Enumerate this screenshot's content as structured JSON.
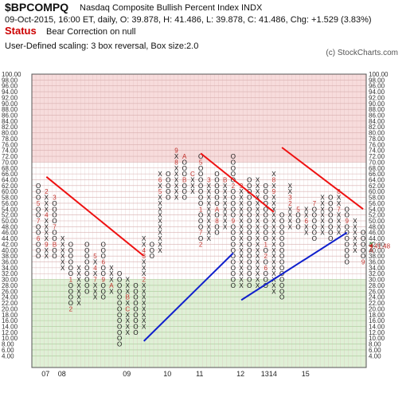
{
  "header": {
    "symbol": "$BPCOMPQ",
    "name": "Nasdaq Composite Bullish Percent Index  INDX",
    "ohlc": "09-Oct-2015, 16:00 ET, daily, O: 39.878, H: 41.486, L: 39.878, C: 41.486, Chg: +1.529 (3.83%)",
    "status_label": "Status",
    "status_text": "Bear Correction on null",
    "scaling": "User-Defined scaling: 3 box reversal, Box size:2.0",
    "copyright": "(c) StockCharts.com"
  },
  "colors": {
    "upper_zone": "#f7dcdc",
    "lower_zone": "#dff0d6",
    "grid": "#d8b0b0",
    "grid_green": "#a8cc98",
    "x_mark": "#111111",
    "o_mark": "#111111",
    "month_mark": "#c0302a",
    "last_x": "#2a9a2a",
    "resistance": "#ee1111",
    "support": "#1020cc"
  },
  "chart_data": {
    "type": "point-and-figure",
    "box_size": 2.0,
    "reversal": 3,
    "ylim": [
      0,
      100
    ],
    "y_ticks": [
      "100.00",
      "98.00",
      "96.00",
      "94.00",
      "92.00",
      "90.00",
      "88.00",
      "86.00",
      "84.00",
      "82.00",
      "80.00",
      "78.00",
      "76.00",
      "74.00",
      "72.00",
      "70.00",
      "68.00",
      "66.00",
      "64.00",
      "62.00",
      "60.00",
      "58.00",
      "56.00",
      "54.00",
      "52.00",
      "50.00",
      "48.00",
      "46.00",
      "44.00",
      "42.00",
      "40.00",
      "38.00",
      "36.00",
      "34.00",
      "32.00",
      "30.00",
      "28.00",
      "26.00",
      "24.00",
      "22.00",
      "20.00",
      "18.00",
      "16.00",
      "14.00",
      "12.00",
      "10.00",
      "8.00",
      "6.00",
      "4.00"
    ],
    "zones": {
      "overbought_from": 70,
      "oversold_to": 30
    },
    "x_labels": [
      {
        "label": "07",
        "col": 1
      },
      {
        "label": "08",
        "col": 3
      },
      {
        "label": "09",
        "col": 11
      },
      {
        "label": "10",
        "col": 16
      },
      {
        "label": "11",
        "col": 20
      },
      {
        "label": "12",
        "col": 25
      },
      {
        "label": "13",
        "col": 28
      },
      {
        "label": "14",
        "col": 29
      },
      {
        "label": "15",
        "col": 33
      }
    ],
    "columns": [
      {
        "type": "O",
        "low": 38,
        "high": 62,
        "months": [
          [
            56,
            "5"
          ],
          [
            50,
            "7"
          ],
          [
            44,
            "6"
          ]
        ]
      },
      {
        "type": "X",
        "low": 38,
        "high": 60,
        "months": [
          [
            60,
            "2"
          ],
          [
            52,
            "4"
          ],
          [
            42,
            "9"
          ]
        ]
      },
      {
        "type": "O",
        "low": 38,
        "high": 58,
        "months": [
          [
            58,
            "3"
          ],
          [
            48,
            "7"
          ],
          [
            42,
            "B"
          ]
        ]
      },
      {
        "type": "X",
        "low": 34,
        "high": 44,
        "months": []
      },
      {
        "type": "O",
        "low": 20,
        "high": 42,
        "months": [
          [
            30,
            "1"
          ],
          [
            20,
            "2"
          ]
        ]
      },
      {
        "type": "X",
        "low": 22,
        "high": 34,
        "months": []
      },
      {
        "type": "O",
        "low": 26,
        "high": 42,
        "months": []
      },
      {
        "type": "X",
        "low": 24,
        "high": 38,
        "months": [
          [
            38,
            "5"
          ],
          [
            34,
            "4"
          ],
          [
            30,
            "7"
          ]
        ]
      },
      {
        "type": "O",
        "low": 24,
        "high": 42,
        "months": [
          [
            36,
            "6"
          ],
          [
            30,
            "9"
          ]
        ]
      },
      {
        "type": "X",
        "low": 26,
        "high": 34,
        "months": [
          [
            28,
            "A"
          ]
        ]
      },
      {
        "type": "O",
        "low": 8,
        "high": 32,
        "months": []
      },
      {
        "type": "X",
        "low": 12,
        "high": 30,
        "months": [
          [
            24,
            "B"
          ],
          [
            20,
            "C"
          ]
        ]
      },
      {
        "type": "O",
        "low": 12,
        "high": 28,
        "months": []
      },
      {
        "type": "X",
        "low": 14,
        "high": 44,
        "months": [
          [
            40,
            "4"
          ],
          [
            38,
            "3"
          ],
          [
            30,
            "2"
          ]
        ]
      },
      {
        "type": "O",
        "low": 38,
        "high": 42,
        "months": []
      },
      {
        "type": "X",
        "low": 40,
        "high": 66,
        "months": [
          [
            64,
            "6"
          ],
          [
            60,
            "5"
          ]
        ]
      },
      {
        "type": "O",
        "low": 58,
        "high": 66,
        "months": []
      },
      {
        "type": "X",
        "low": 58,
        "high": 74,
        "months": [
          [
            74,
            "9"
          ],
          [
            70,
            "8"
          ]
        ]
      },
      {
        "type": "O",
        "low": 58,
        "high": 72,
        "months": [
          [
            72,
            "A"
          ],
          [
            64,
            "B"
          ]
        ]
      },
      {
        "type": "X",
        "low": 60,
        "high": 66,
        "months": [
          [
            66,
            "C"
          ]
        ]
      },
      {
        "type": "O",
        "low": 42,
        "high": 72,
        "months": [
          [
            70,
            "5"
          ],
          [
            54,
            "1"
          ],
          [
            46,
            "7"
          ],
          [
            42,
            "2"
          ]
        ]
      },
      {
        "type": "X",
        "low": 44,
        "high": 64,
        "months": [
          [
            64,
            "3"
          ]
        ]
      },
      {
        "type": "O",
        "low": 46,
        "high": 66,
        "months": [
          [
            54,
            "A"
          ],
          [
            50,
            "8"
          ]
        ]
      },
      {
        "type": "X",
        "low": 48,
        "high": 64,
        "months": [
          [
            64,
            "B"
          ]
        ]
      },
      {
        "type": "O",
        "low": 28,
        "high": 72,
        "months": [
          [
            62,
            "2"
          ],
          [
            50,
            "9"
          ]
        ]
      },
      {
        "type": "X",
        "low": 28,
        "high": 62,
        "months": [
          [
            62,
            "3"
          ]
        ]
      },
      {
        "type": "O",
        "low": 28,
        "high": 64,
        "months": []
      },
      {
        "type": "X",
        "low": 28,
        "high": 64,
        "months": []
      },
      {
        "type": "O",
        "low": 28,
        "high": 62,
        "months": [
          [
            42,
            "1"
          ],
          [
            38,
            "2"
          ],
          [
            34,
            "6"
          ]
        ]
      },
      {
        "type": "X",
        "low": 26,
        "high": 66,
        "months": [
          [
            64,
            "8"
          ],
          [
            60,
            "9"
          ]
        ]
      },
      {
        "type": "O",
        "low": 24,
        "high": 52,
        "months": []
      },
      {
        "type": "X",
        "low": 48,
        "high": 62,
        "months": [
          [
            58,
            "3"
          ],
          [
            56,
            "2"
          ]
        ]
      },
      {
        "type": "O",
        "low": 48,
        "high": 54,
        "months": [
          [
            54,
            "5"
          ]
        ]
      },
      {
        "type": "X",
        "low": 46,
        "high": 54,
        "months": [
          [
            50,
            "6"
          ]
        ]
      },
      {
        "type": "O",
        "low": 44,
        "high": 56,
        "months": [
          [
            56,
            "7"
          ]
        ]
      },
      {
        "type": "X",
        "low": 46,
        "high": 58,
        "months": []
      },
      {
        "type": "O",
        "low": 44,
        "high": 58,
        "months": []
      },
      {
        "type": "X",
        "low": 46,
        "high": 60,
        "months": [
          [
            60,
            "8"
          ],
          [
            54,
            "7"
          ]
        ]
      },
      {
        "type": "O",
        "low": 36,
        "high": 54,
        "months": [
          [
            50,
            "9"
          ]
        ]
      },
      {
        "type": "X",
        "low": 40,
        "high": 50,
        "months": []
      },
      {
        "type": "O",
        "low": 36,
        "high": 46,
        "months": [
          [
            36,
            "9"
          ]
        ]
      },
      {
        "type": "X",
        "low": 40,
        "high": 42,
        "months": [
          [
            40,
            "A"
          ]
        ]
      }
    ],
    "trendlines": [
      {
        "kind": "resistance",
        "from": [
          1,
          65
        ],
        "to": [
          13,
          38
        ]
      },
      {
        "kind": "support",
        "from": [
          13,
          9
        ],
        "to": [
          24,
          39
        ]
      },
      {
        "kind": "resistance",
        "from": [
          20,
          73
        ],
        "to": [
          29,
          53
        ]
      },
      {
        "kind": "support",
        "from": [
          25,
          23
        ],
        "to": [
          38,
          46
        ]
      },
      {
        "kind": "resistance",
        "from": [
          30,
          75
        ],
        "to": [
          40,
          54
        ]
      }
    ],
    "last_price_label": "41.48",
    "last_price": 41.486
  }
}
